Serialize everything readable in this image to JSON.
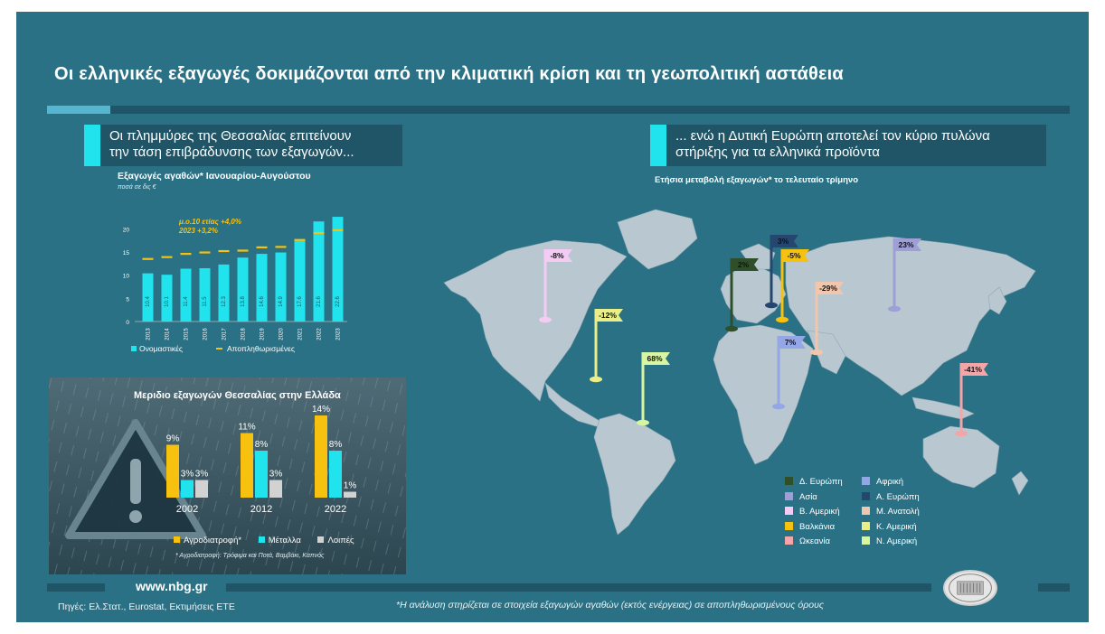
{
  "main_title": "Οι ελληνικές εξαγωγές δοκιμάζονται από την κλιματική κρίση και τη γεωπολιτική αστάθεια",
  "left_header": {
    "line1": "Οι πλημμύρες της Θεσσαλίας επιτείνουν",
    "line2": "την τάση επιβράδυνσης των εξαγωγών..."
  },
  "right_header": {
    "line1": "... ενώ η Δυτική Ευρώπη αποτελεί τον κύριο πυλώνα",
    "line2": "στήριξης για τα ελληνικά προϊόντα"
  },
  "map_subtitle": "Ετήσια μεταβολή εξαγωγών* το τελευταίο τρίμηνο",
  "footer": {
    "url": "www.nbg.gr",
    "sources": "Πηγές: Ελ.Στατ., Eurostat, Εκτιμήσεις ΕΤΕ",
    "note": "*Η ανάλυση στηρίζεται σε στοιχεία εξαγωγών αγαθών (εκτός ενέργειας) σε αποπληθωρισμένους όρους"
  },
  "colors": {
    "background": "#2b7185",
    "dark_band": "#1f5567",
    "cyan": "#21e3ee",
    "yellow": "#f6c20f",
    "gray": "#d2d2d2"
  },
  "chart_data": [
    {
      "type": "bar",
      "title": "Εξαγωγές αγαθών* Ιανουαρίου-Αυγούστου",
      "subtitle": "ποσά σε δις €",
      "categories": [
        "2013",
        "2014",
        "2015",
        "2016",
        "2017",
        "2018",
        "2019",
        "2020",
        "2021",
        "2022",
        "2023"
      ],
      "series": [
        {
          "name": "Ονομαστικές",
          "values": [
            10.4,
            10.1,
            11.4,
            11.5,
            12.3,
            13.8,
            14.6,
            14.9,
            17.6,
            21.6,
            22.6
          ],
          "color": "#21e3ee"
        },
        {
          "name": "Αποπληθωρισμένες",
          "values": [
            13.5,
            13.9,
            14.6,
            14.9,
            15.2,
            15.3,
            16.0,
            16.1,
            17.6,
            19.1,
            19.7
          ],
          "color": "#f6c20f"
        }
      ],
      "y_ticks": [
        "0",
        "5",
        "10",
        "15",
        "20"
      ],
      "ylim": [
        0,
        23
      ],
      "annotations": [
        "μ.ο.10 ετίας +4,0%",
        "2023 +3,2%"
      ],
      "legend": "bottom"
    },
    {
      "type": "bar",
      "title": "Μεριδιο εξαγωγών Θεσσαλίας στην Ελλάδα",
      "categories": [
        "2002",
        "2012",
        "2022"
      ],
      "series": [
        {
          "name": "Αγροδιατροφή*",
          "values": [
            9,
            11,
            14
          ],
          "color": "#f6c20f"
        },
        {
          "name": "Μέταλλα",
          "values": [
            3,
            8,
            8
          ],
          "color": "#21e3ee"
        },
        {
          "name": "Λοιπές",
          "values": [
            3,
            3,
            1
          ],
          "color": "#d2d2d2"
        }
      ],
      "unit": "%",
      "footnote": "* Αγροδιατροφή: Τρόφιμα και Ποτά, Βαμβάκι, Καπνός",
      "legend": "bottom"
    },
    {
      "type": "map",
      "regions": [
        {
          "name": "Δ. Ευρώπη",
          "value": "2%",
          "color": "#2e4f2a"
        },
        {
          "name": "Ασία",
          "value": "23%",
          "color": "#9d9fd6"
        },
        {
          "name": "Β. Αμερική",
          "value": "-8%",
          "color": "#f3cbf3"
        },
        {
          "name": "Βαλκάνια",
          "value": "-5%",
          "color": "#f6c20f"
        },
        {
          "name": "Ωκεανία",
          "value": "-41%",
          "color": "#f4a5a7"
        },
        {
          "name": "Αφρική",
          "value": "7%",
          "color": "#93a6e6"
        },
        {
          "name": "Α. Ευρώπη",
          "value": "3%",
          "color": "#24466f"
        },
        {
          "name": "Μ. Ανατολή",
          "value": "-29%",
          "color": "#f2c6ac"
        },
        {
          "name": "Κ. Αμερική",
          "value": "-12%",
          "color": "#e9ef86"
        },
        {
          "name": "Ν. Αμερική",
          "value": "68%",
          "color": "#d8f5a1"
        }
      ]
    }
  ]
}
